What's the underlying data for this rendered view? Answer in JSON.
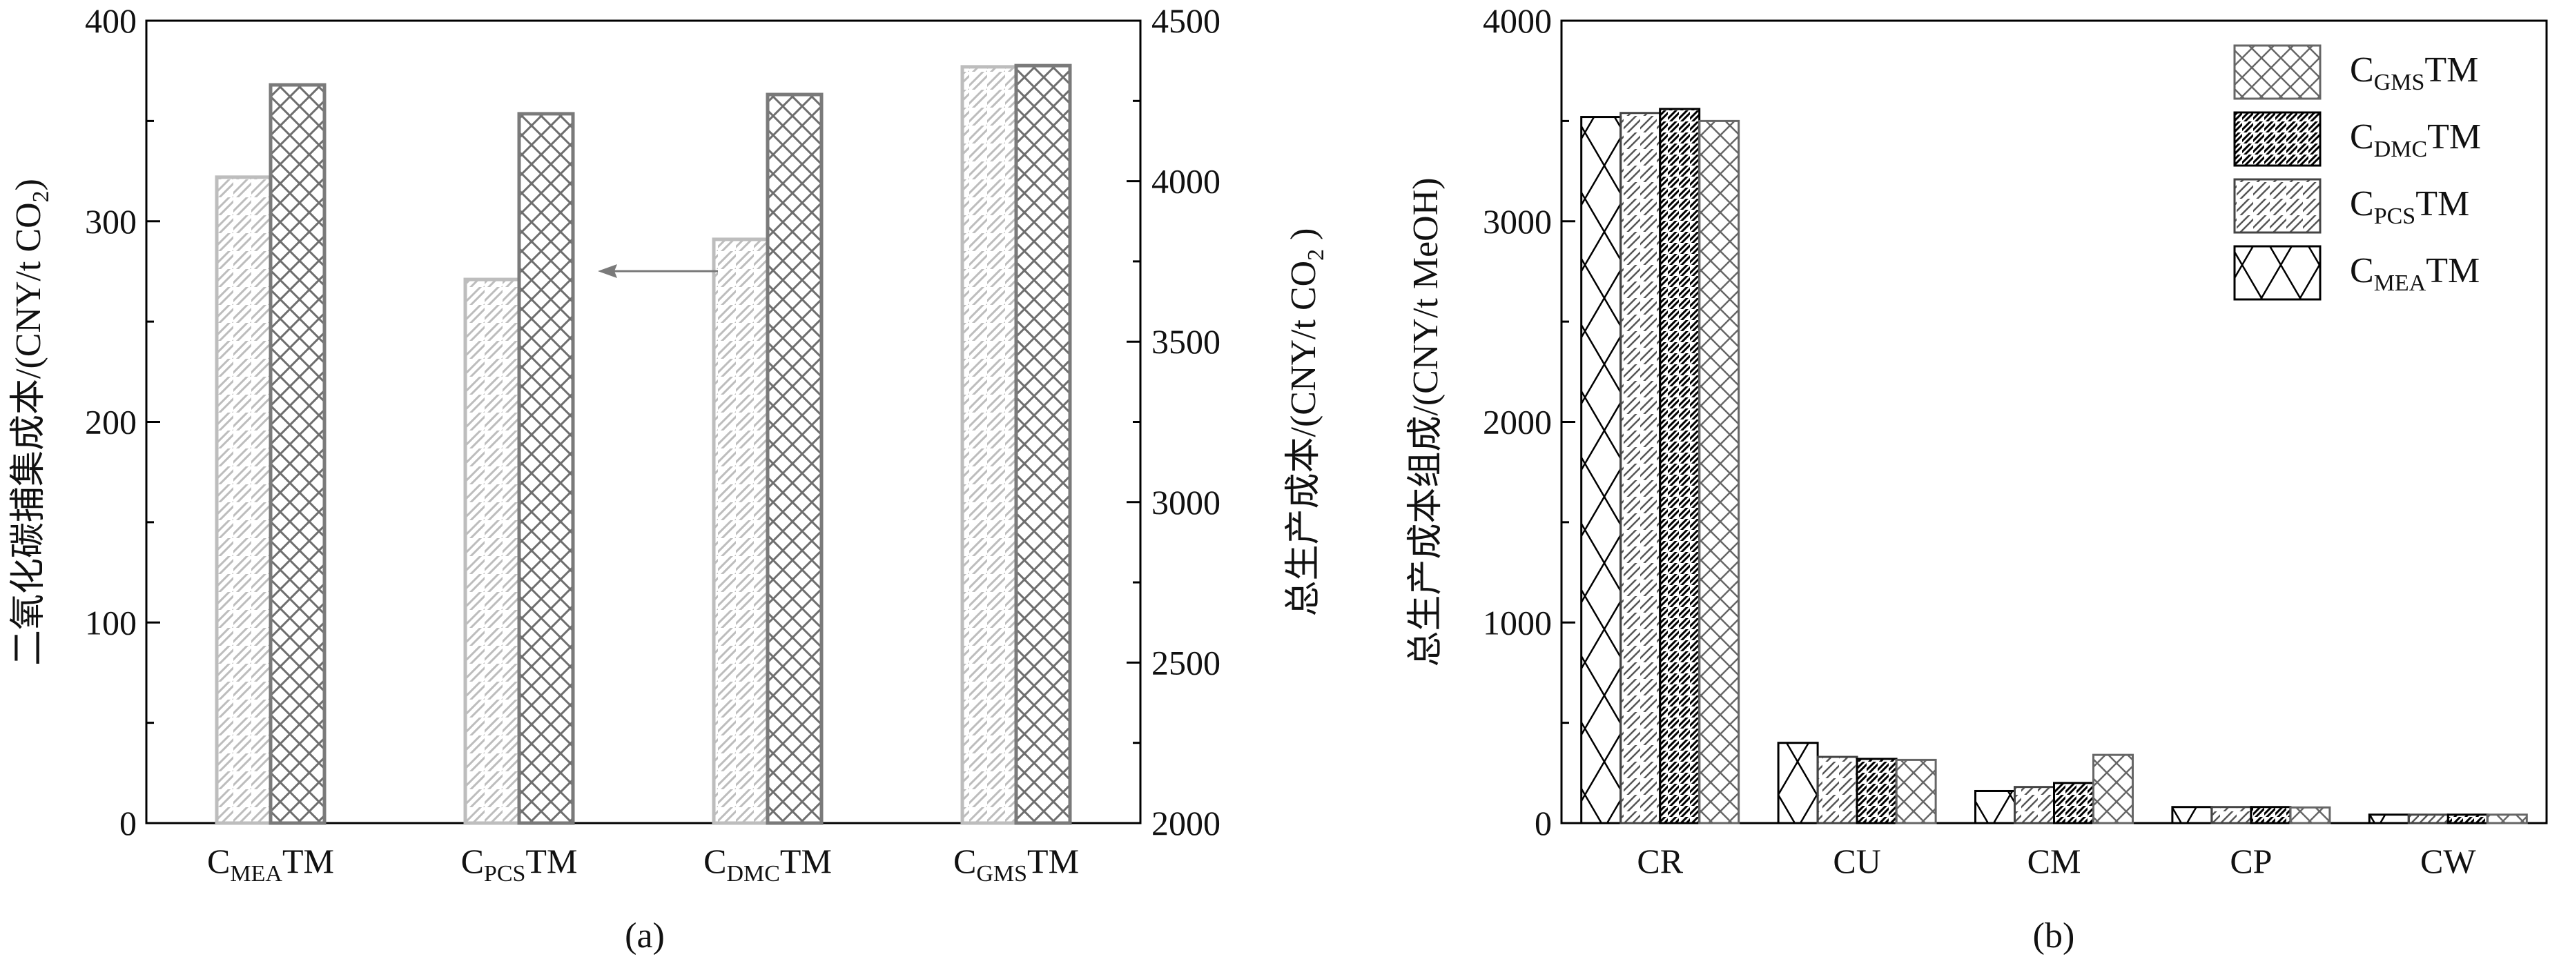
{
  "colors": {
    "axis": "#000000",
    "light_series": "#bdbdbd",
    "dark_series": "#7a7a7a",
    "arrow": "#7a7a7a"
  },
  "chart_data": [
    {
      "type": "bar",
      "caption": "(a)",
      "categories": [
        {
          "main": "C",
          "sub": "MEA",
          "suffix": "TM"
        },
        {
          "main": "C",
          "sub": "PCS",
          "suffix": "TM"
        },
        {
          "main": "C",
          "sub": "DMC",
          "suffix": "TM"
        },
        {
          "main": "C",
          "sub": "GMS",
          "suffix": "TM"
        }
      ],
      "ylabel_left": "二氧化碳捕集成本/(CNY/t CO",
      "ylabel_left_sub": "2",
      "ylabel_left_end": ")",
      "ylabel_right": "总生产成本/(CNY/t CO",
      "ylabel_right_sub": "2",
      "ylabel_right_end": " )",
      "ylim_left": [
        0,
        400
      ],
      "yticks_left": [
        "0",
        "100",
        "200",
        "300",
        "400"
      ],
      "ylim_right": [
        2000,
        4500
      ],
      "yticks_right": [
        "2000",
        "2500",
        "3000",
        "3500",
        "4000",
        "4500"
      ],
      "series": [
        {
          "axis": "left",
          "pattern": "diagonal",
          "values": [
            322,
            271,
            291,
            377
          ]
        },
        {
          "axis": "right",
          "pattern": "crosshatch",
          "values": [
            4300,
            4210,
            4270,
            4360
          ]
        }
      ]
    },
    {
      "type": "bar",
      "caption": "(b)",
      "categories": [
        "CR",
        "CU",
        "CM",
        "CP",
        "CW"
      ],
      "ylabel": "总生产成本组成/(CNY/t MeOH)",
      "ylim": [
        0,
        4000
      ],
      "yticks": [
        "0",
        "1000",
        "2000",
        "3000",
        "4000"
      ],
      "legend_position": "top-right",
      "legend": [
        {
          "main": "C",
          "sub": "GMS",
          "suffix": "TM",
          "pattern": "crosshatch"
        },
        {
          "main": "C",
          "sub": "DMC",
          "suffix": "TM",
          "pattern": "dense-diagonal"
        },
        {
          "main": "C",
          "sub": "PCS",
          "suffix": "TM",
          "pattern": "diagonal-gray"
        },
        {
          "main": "C",
          "sub": "MEA",
          "suffix": "TM",
          "pattern": "cross-diagonal"
        }
      ],
      "series": [
        {
          "label": "CMEATM",
          "values": [
            3520,
            400,
            160,
            80,
            42
          ]
        },
        {
          "label": "CPCSTM",
          "values": [
            3540,
            330,
            180,
            80,
            42
          ]
        },
        {
          "label": "CDMCTM",
          "values": [
            3560,
            320,
            200,
            80,
            42
          ]
        },
        {
          "label": "CGMSTM",
          "values": [
            3500,
            315,
            340,
            78,
            42
          ]
        }
      ]
    }
  ]
}
